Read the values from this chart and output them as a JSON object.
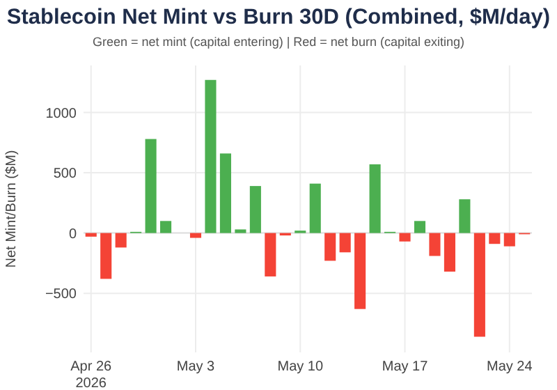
{
  "chart_data": {
    "type": "bar",
    "title": "Stablecoin Net Mint vs Burn 30D (Combined, $M/day)",
    "subtitle": "Green = net mint (capital entering) | Red = net burn (capital exiting)",
    "ylabel": "Net Mint/Burn ($M)",
    "x": [
      "2026-04-26",
      "2026-04-27",
      "2026-04-28",
      "2026-04-29",
      "2026-04-30",
      "2026-05-01",
      "2026-05-02",
      "2026-05-03",
      "2026-05-04",
      "2026-05-05",
      "2026-05-06",
      "2026-05-07",
      "2026-05-08",
      "2026-05-09",
      "2026-05-10",
      "2026-05-11",
      "2026-05-12",
      "2026-05-13",
      "2026-05-14",
      "2026-05-15",
      "2026-05-16",
      "2026-05-17",
      "2026-05-18",
      "2026-05-19",
      "2026-05-20",
      "2026-05-21",
      "2026-05-22",
      "2026-05-23",
      "2026-05-24",
      "2026-05-25"
    ],
    "values": [
      -30,
      -380,
      -120,
      10,
      780,
      100,
      null,
      -40,
      1270,
      660,
      30,
      390,
      -360,
      -20,
      20,
      410,
      -230,
      -160,
      -630,
      570,
      10,
      -70,
      100,
      -190,
      -320,
      280,
      -860,
      -90,
      -110,
      -10
    ],
    "colors": [
      "#f44336",
      "#f44336",
      "#f44336",
      "#4caf50",
      "#4caf50",
      "#4caf50",
      "#4caf50",
      "#f44336",
      "#4caf50",
      "#4caf50",
      "#4caf50",
      "#4caf50",
      "#f44336",
      "#f44336",
      "#4caf50",
      "#4caf50",
      "#f44336",
      "#f44336",
      "#f44336",
      "#4caf50",
      "#4caf50",
      "#f44336",
      "#4caf50",
      "#f44336",
      "#f44336",
      "#4caf50",
      "#f44336",
      "#f44336",
      "#f44336",
      "#f44336"
    ],
    "xlim": [
      "2026-04-25T12:00",
      "2026-05-25T12:00"
    ],
    "xticks": [
      {
        "value": "2026-04-26",
        "label": "Apr 26\n2026"
      },
      {
        "value": "2026-05-03",
        "label": "May 3"
      },
      {
        "value": "2026-05-10",
        "label": "May 10"
      },
      {
        "value": "2026-05-17",
        "label": "May 17"
      },
      {
        "value": "2026-05-24",
        "label": "May 24"
      }
    ],
    "ylim": [
      -990,
      1390
    ],
    "yticks": [
      {
        "value": -500,
        "label": "−500"
      },
      0,
      500,
      1000
    ],
    "grid": true
  }
}
